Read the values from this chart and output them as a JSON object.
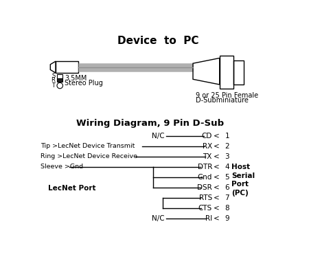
{
  "title_top": "Device  to  PC",
  "title_bottom": "Wiring Diagram, 9 Pin D-Sub",
  "background": "#ffffff",
  "pin_signals": [
    "CD",
    "RX",
    "TX",
    "DTR",
    "Gnd",
    "DSR",
    "RTS",
    "CTS",
    "RI"
  ],
  "pin_numbers": [
    "1",
    "2",
    "3",
    "4",
    "5",
    "6",
    "7",
    "8",
    "9"
  ],
  "host_label": [
    "Host",
    "Serial",
    "Port",
    "(PC)"
  ],
  "lecnet_label": "LecNet Port",
  "stereo_label": [
    "3.5MM",
    "Stereo Plug"
  ],
  "dsub_label": [
    "9 or 25 Pin Female",
    "D-Subminiature"
  ]
}
